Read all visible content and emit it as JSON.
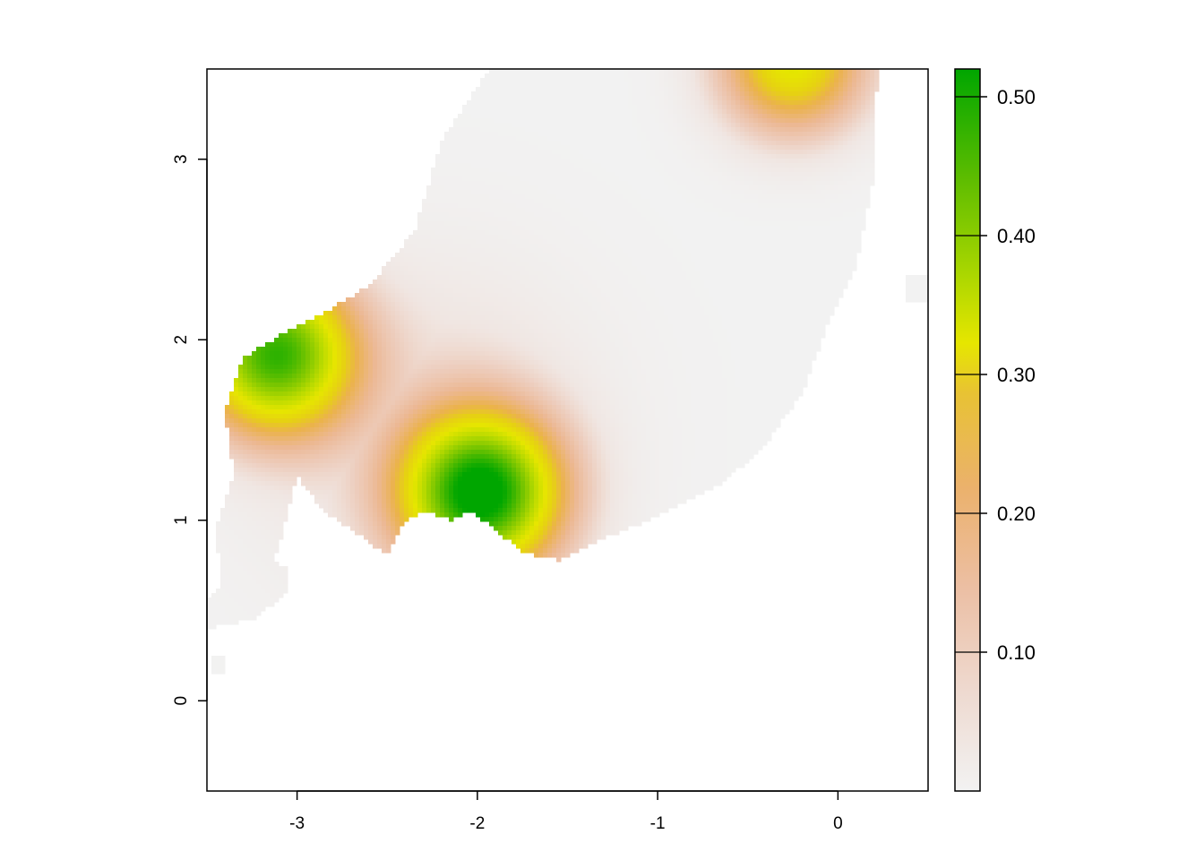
{
  "chart_data": {
    "type": "heatmap",
    "title": "",
    "xlabel": "",
    "ylabel": "",
    "xlim": [
      -3.5,
      0.5
    ],
    "ylim": [
      -0.5,
      3.5
    ],
    "x_ticks": [
      -3,
      -2,
      -1,
      0
    ],
    "x_tick_labels": [
      "-3",
      "-2",
      "-1",
      "0"
    ],
    "y_ticks": [
      0,
      1,
      2,
      3
    ],
    "y_tick_labels": [
      "0",
      "1",
      "2",
      "3"
    ],
    "value_range": [
      0.0,
      0.52
    ],
    "grid": false,
    "legend": {
      "type": "colorbar",
      "placement": "right",
      "ticks": [
        0.1,
        0.2,
        0.3,
        0.4,
        0.5
      ],
      "tick_labels": [
        "0.10",
        "0.20",
        "0.30",
        "0.40",
        "0.50"
      ]
    },
    "colors": {
      "low": "#f2f2f2",
      "stops": [
        "#f2f2f2",
        "#eec7b3",
        "#ebb47c",
        "#e8c234",
        "#e6e600",
        "#a7d600",
        "#5cbc00",
        "#00a600"
      ]
    },
    "peaks": [
      {
        "x": -1.98,
        "y": 1.15,
        "value": 0.52
      },
      {
        "x": -3.12,
        "y": 1.92,
        "value": 0.46
      },
      {
        "x": -0.25,
        "y": 3.55,
        "value": 0.3
      }
    ]
  }
}
